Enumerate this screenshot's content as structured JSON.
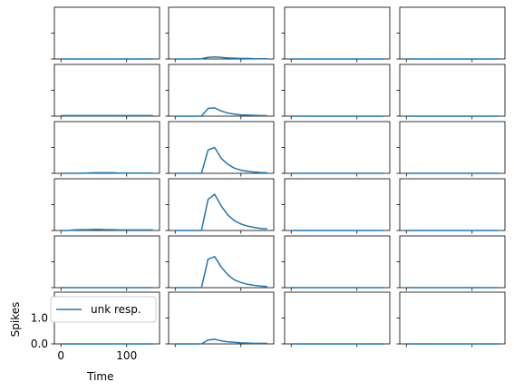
{
  "chart_data": {
    "type": "line",
    "layout": {
      "rows": 6,
      "cols": 4,
      "sharex": true,
      "sharey": true
    },
    "xlabel": "Time",
    "ylabel": "Spikes",
    "xlim": [
      -10,
      150
    ],
    "ylim": [
      0,
      2.0
    ],
    "x_ticks": [
      0,
      100
    ],
    "x_tick_labels": [
      "0",
      "100"
    ],
    "y_ticks": [
      0.0,
      1.0
    ],
    "y_tick_labels": [
      "0.0",
      "1.0"
    ],
    "series_color": "#1f77b4",
    "legend": {
      "label": "unk resp.",
      "location": "upper left",
      "panel": [
        5,
        0
      ]
    },
    "x": [
      0,
      10,
      20,
      30,
      40,
      50,
      60,
      70,
      80,
      90,
      100,
      110,
      120,
      130,
      140
    ],
    "panels": [
      {
        "row": 0,
        "col": 0,
        "values": [
          0,
          0,
          0,
          0,
          0,
          0,
          0,
          0,
          0,
          0,
          0,
          0,
          0,
          0,
          0
        ]
      },
      {
        "row": 0,
        "col": 1,
        "values": [
          0,
          0,
          0,
          0,
          0.01,
          0.06,
          0.08,
          0.06,
          0.04,
          0.03,
          0.02,
          0.02,
          0.01,
          0.01,
          0.01
        ]
      },
      {
        "row": 0,
        "col": 2,
        "values": [
          0,
          0,
          0,
          0,
          0,
          0,
          0,
          0,
          0,
          0,
          0,
          0,
          0,
          0,
          0
        ]
      },
      {
        "row": 0,
        "col": 3,
        "values": [
          0,
          0,
          0,
          0,
          0,
          0,
          0,
          0,
          0,
          0,
          0,
          0,
          0,
          0,
          0
        ]
      },
      {
        "row": 1,
        "col": 0,
        "values": [
          0.02,
          0.02,
          0.02,
          0.02,
          0.02,
          0.02,
          0.02,
          0.02,
          0.02,
          0.02,
          0.02,
          0.02,
          0.02,
          0.02,
          0.02
        ]
      },
      {
        "row": 1,
        "col": 1,
        "values": [
          0,
          0,
          0,
          0,
          0,
          0.3,
          0.32,
          0.2,
          0.12,
          0.08,
          0.05,
          0.04,
          0.03,
          0.02,
          0.02
        ]
      },
      {
        "row": 1,
        "col": 2,
        "values": [
          0,
          0,
          0,
          0,
          0,
          0,
          0,
          0,
          0,
          0,
          0,
          0,
          0,
          0,
          0
        ]
      },
      {
        "row": 1,
        "col": 3,
        "values": [
          0,
          0,
          0,
          0,
          0,
          0,
          0,
          0,
          0,
          0,
          0,
          0,
          0,
          0,
          0
        ]
      },
      {
        "row": 2,
        "col": 0,
        "values": [
          0,
          0,
          0,
          0,
          0.01,
          0.02,
          0.02,
          0.02,
          0.02,
          0.01,
          0.01,
          0.01,
          0.01,
          0.01,
          0.01
        ]
      },
      {
        "row": 2,
        "col": 1,
        "values": [
          0,
          0,
          0,
          0,
          0,
          0.9,
          1.0,
          0.58,
          0.35,
          0.2,
          0.12,
          0.08,
          0.05,
          0.03,
          0.02
        ]
      },
      {
        "row": 2,
        "col": 2,
        "values": [
          0,
          0,
          0,
          0,
          0,
          0,
          0,
          0,
          0,
          0,
          0,
          0,
          0,
          0,
          0
        ]
      },
      {
        "row": 2,
        "col": 3,
        "values": [
          0,
          0,
          0,
          0,
          0,
          0,
          0,
          0,
          0,
          0,
          0,
          0,
          0,
          0,
          0
        ]
      },
      {
        "row": 3,
        "col": 0,
        "values": [
          0,
          0,
          0.02,
          0.03,
          0.03,
          0.04,
          0.04,
          0.03,
          0.03,
          0.02,
          0.02,
          0.02,
          0.02,
          0.02,
          0.02
        ]
      },
      {
        "row": 3,
        "col": 1,
        "values": [
          0,
          0,
          0,
          0,
          0,
          1.2,
          1.4,
          0.95,
          0.6,
          0.38,
          0.25,
          0.17,
          0.12,
          0.08,
          0.06
        ]
      },
      {
        "row": 3,
        "col": 2,
        "values": [
          0,
          0,
          0,
          0,
          0,
          0,
          0,
          0,
          0,
          0,
          0,
          0,
          0,
          0,
          0
        ]
      },
      {
        "row": 3,
        "col": 3,
        "values": [
          0,
          0,
          0,
          0,
          0,
          0,
          0,
          0,
          0,
          0,
          0,
          0,
          0,
          0,
          0
        ]
      },
      {
        "row": 4,
        "col": 0,
        "values": [
          0,
          0,
          0,
          0,
          0,
          0,
          0,
          0,
          0,
          0,
          0,
          0,
          0,
          0,
          0
        ]
      },
      {
        "row": 4,
        "col": 1,
        "values": [
          0,
          0,
          0,
          0,
          0,
          1.1,
          1.2,
          0.8,
          0.5,
          0.3,
          0.2,
          0.13,
          0.09,
          0.06,
          0.04
        ]
      },
      {
        "row": 4,
        "col": 2,
        "values": [
          0,
          0,
          0,
          0,
          0,
          0,
          0,
          0,
          0,
          0,
          0,
          0,
          0,
          0,
          0
        ]
      },
      {
        "row": 4,
        "col": 3,
        "values": [
          0,
          0,
          0,
          0,
          0,
          0,
          0,
          0,
          0,
          0,
          0,
          0,
          0,
          0,
          0
        ]
      },
      {
        "row": 5,
        "col": 0,
        "values": [
          0,
          0,
          0,
          0,
          0,
          0,
          0,
          0,
          0,
          0,
          0,
          0,
          0,
          0,
          0
        ]
      },
      {
        "row": 5,
        "col": 1,
        "values": [
          0,
          0,
          0,
          0,
          0,
          0.15,
          0.18,
          0.12,
          0.08,
          0.06,
          0.04,
          0.03,
          0.02,
          0.02,
          0.02
        ]
      },
      {
        "row": 5,
        "col": 2,
        "values": [
          0,
          0,
          0,
          0,
          0,
          0,
          0,
          0,
          0,
          0,
          0,
          0,
          0,
          0,
          0
        ]
      },
      {
        "row": 5,
        "col": 3,
        "values": [
          0,
          0,
          0,
          0,
          0,
          0,
          0,
          0,
          0,
          0,
          0,
          0,
          0,
          0,
          0
        ]
      }
    ]
  }
}
